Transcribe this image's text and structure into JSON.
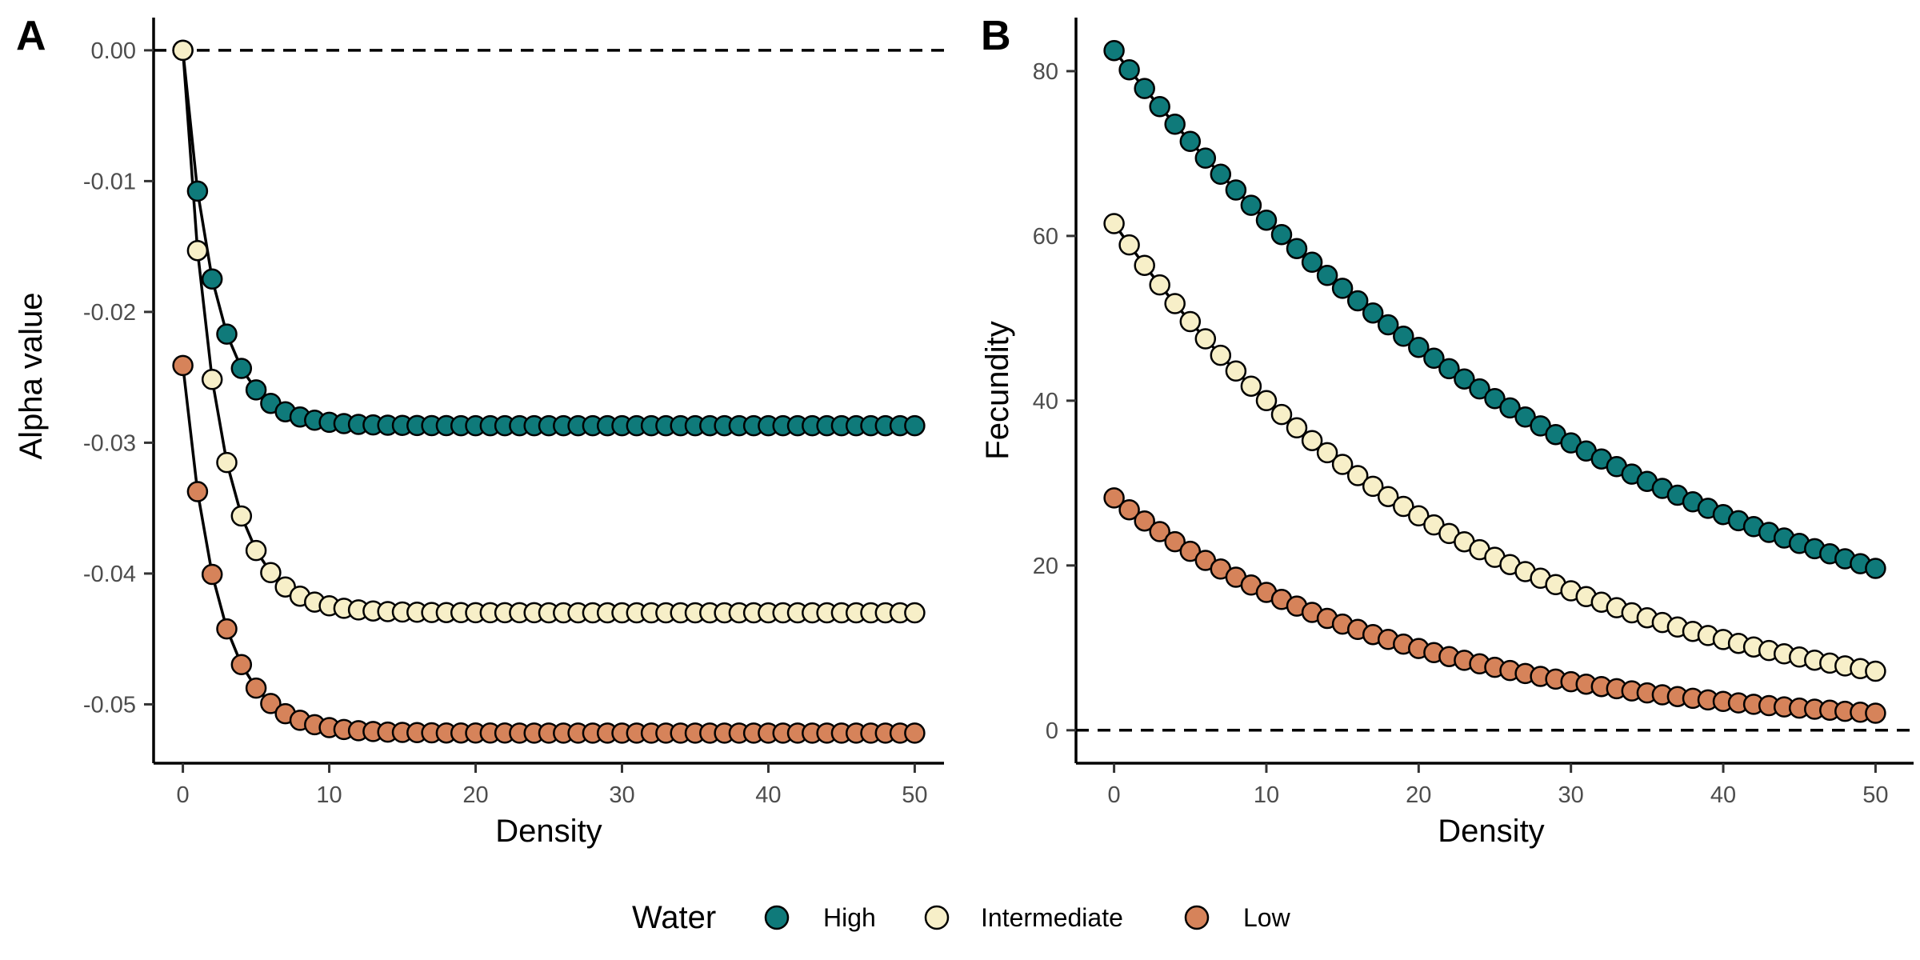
{
  "legend": {
    "title": "Water",
    "entries": [
      {
        "label": "High",
        "color": "#0f7a7a"
      },
      {
        "label": "Intermediate",
        "color": "#f7efc8"
      },
      {
        "label": "Low",
        "color": "#d6835a"
      }
    ]
  },
  "chart_data": [
    {
      "panel": "A",
      "type": "line",
      "markers": true,
      "xlabel": "Density",
      "ylabel": "Alpha value",
      "xlim": [
        -2,
        52
      ],
      "ylim": [
        -0.0545,
        0.0025
      ],
      "xticks": [
        0,
        10,
        20,
        30,
        40,
        50
      ],
      "yticks": [
        0.0,
        -0.01,
        -0.02,
        -0.03,
        -0.04,
        -0.05
      ],
      "ytick_labels": [
        "0.00",
        "-0.01",
        "-0.02",
        "-0.03",
        "-0.04",
        "-0.05"
      ],
      "reference_line": {
        "y": 0,
        "style": "dashed"
      },
      "model": "y = a + (c - a) * exp(-k * x), x = 0..50",
      "series": [
        {
          "name": "High",
          "color": "#0f7a7a",
          "start": 0.0,
          "asymptote": -0.0287,
          "rate": 0.47
        },
        {
          "name": "Intermediate",
          "color": "#f7efc8",
          "start": 0.0,
          "asymptote": -0.043,
          "rate": 0.44
        },
        {
          "name": "Low",
          "color": "#d6835a",
          "start": -0.0241,
          "asymptote": -0.0522,
          "rate": 0.42
        }
      ]
    },
    {
      "panel": "B",
      "type": "line",
      "markers": true,
      "xlabel": "Density",
      "ylabel": "Fecundity",
      "xlim": [
        -2.5,
        52.5
      ],
      "ylim": [
        -4,
        86.5
      ],
      "xticks": [
        0,
        10,
        20,
        30,
        40,
        50
      ],
      "yticks": [
        0,
        20,
        40,
        60,
        80
      ],
      "ytick_labels": [
        "0",
        "20",
        "40",
        "60",
        "80"
      ],
      "reference_line": {
        "y": 0,
        "style": "dashed"
      },
      "model": "y = start * exp(-k * x), x = 0..50",
      "series": [
        {
          "name": "High",
          "color": "#0f7a7a",
          "start": 82.5,
          "rate": 0.0287
        },
        {
          "name": "Intermediate",
          "color": "#f7efc8",
          "start": 61.5,
          "rate": 0.043
        },
        {
          "name": "Low",
          "color": "#d6835a",
          "start": 28.2,
          "rate": 0.0522
        }
      ]
    }
  ]
}
